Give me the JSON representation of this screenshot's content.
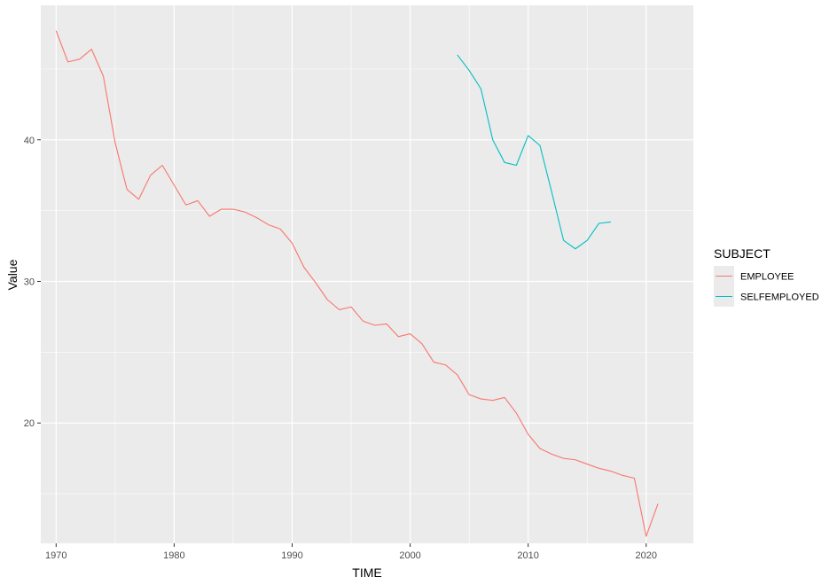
{
  "chart_data": {
    "type": "line",
    "xlabel": "TIME",
    "ylabel": "Value",
    "xlim": [
      1968.7,
      2024
    ],
    "ylim": [
      11.5,
      49.5
    ],
    "x_ticks": [
      1970,
      1980,
      1990,
      2000,
      2010,
      2020
    ],
    "y_ticks": [
      20,
      30,
      40
    ],
    "grid": true,
    "legend": {
      "title": "SUBJECT",
      "position": "right"
    },
    "series": [
      {
        "name": "EMPLOYEE",
        "color": "#F8766D",
        "x": [
          1970,
          1971,
          1972,
          1973,
          1974,
          1975,
          1976,
          1977,
          1978,
          1979,
          1980,
          1981,
          1982,
          1983,
          1984,
          1985,
          1986,
          1987,
          1988,
          1989,
          1990,
          1991,
          1992,
          1993,
          1994,
          1995,
          1996,
          1997,
          1998,
          1999,
          2000,
          2001,
          2002,
          2003,
          2004,
          2005,
          2006,
          2007,
          2008,
          2009,
          2010,
          2011,
          2012,
          2013,
          2014,
          2015,
          2016,
          2017,
          2018,
          2019,
          2020,
          2021
        ],
        "y": [
          47.7,
          45.5,
          45.7,
          46.4,
          44.5,
          39.8,
          36.5,
          35.8,
          37.5,
          38.2,
          36.8,
          35.4,
          35.7,
          34.6,
          35.1,
          35.1,
          34.9,
          34.5,
          34.0,
          33.7,
          32.7,
          31.0,
          29.9,
          28.7,
          28.0,
          28.2,
          27.2,
          26.9,
          27.0,
          26.1,
          26.3,
          25.6,
          24.3,
          24.1,
          23.4,
          22.0,
          21.7,
          21.6,
          21.8,
          20.7,
          19.2,
          18.2,
          17.8,
          17.5,
          17.4,
          17.1,
          16.8,
          16.6,
          16.3,
          16.1,
          12.0,
          14.3
        ]
      },
      {
        "name": "SELFEMPLOYED",
        "color": "#00BFC4",
        "x": [
          2004,
          2005,
          2006,
          2007,
          2008,
          2009,
          2010,
          2011,
          2012,
          2013,
          2014,
          2015,
          2016,
          2017
        ],
        "y": [
          46.0,
          44.9,
          43.6,
          40.0,
          38.4,
          38.2,
          40.3,
          39.6,
          36.3,
          32.9,
          32.3,
          32.9,
          34.1,
          34.2
        ]
      }
    ]
  }
}
